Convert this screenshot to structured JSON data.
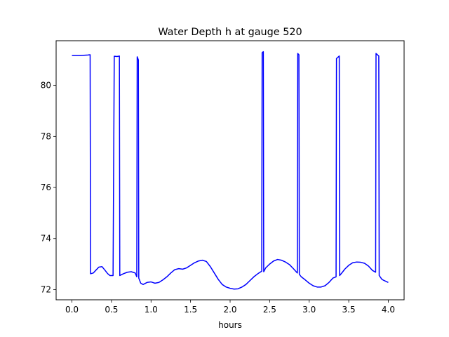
{
  "chart_data": {
    "type": "line",
    "title": "Water Depth h at gauge 520",
    "xlabel": "hours",
    "ylabel": "",
    "xlim": [
      -0.2,
      4.2
    ],
    "ylim": [
      71.6,
      81.75
    ],
    "grid": false,
    "x_ticks": [
      0.0,
      0.5,
      1.0,
      1.5,
      2.0,
      2.5,
      3.0,
      3.5,
      4.0
    ],
    "x_tick_labels": [
      "0.0",
      "0.5",
      "1.0",
      "1.5",
      "2.0",
      "2.5",
      "3.0",
      "3.5",
      "4.0"
    ],
    "y_ticks": [
      72,
      74,
      76,
      78,
      80
    ],
    "y_tick_labels": [
      "72",
      "74",
      "76",
      "78",
      "80"
    ],
    "series": [
      {
        "color": "#0000ff",
        "x": [
          0.0,
          0.1,
          0.2,
          0.23,
          0.235,
          0.27,
          0.3,
          0.34,
          0.38,
          0.42,
          0.45,
          0.48,
          0.52,
          0.535,
          0.54,
          0.57,
          0.6,
          0.605,
          0.65,
          0.7,
          0.75,
          0.8,
          0.82,
          0.825,
          0.84,
          0.845,
          0.87,
          0.9,
          0.95,
          1.0,
          1.05,
          1.1,
          1.15,
          1.2,
          1.25,
          1.3,
          1.35,
          1.4,
          1.45,
          1.5,
          1.55,
          1.6,
          1.65,
          1.7,
          1.75,
          1.8,
          1.85,
          1.9,
          1.95,
          2.0,
          2.05,
          2.1,
          2.15,
          2.2,
          2.25,
          2.3,
          2.35,
          2.4,
          2.405,
          2.42,
          2.425,
          2.45,
          2.5,
          2.55,
          2.6,
          2.65,
          2.7,
          2.75,
          2.8,
          2.85,
          2.855,
          2.87,
          2.875,
          2.9,
          2.95,
          3.0,
          3.05,
          3.1,
          3.15,
          3.2,
          3.25,
          3.3,
          3.34,
          3.345,
          3.38,
          3.385,
          3.42,
          3.45,
          3.5,
          3.55,
          3.6,
          3.65,
          3.7,
          3.75,
          3.8,
          3.84,
          3.845,
          3.88,
          3.885,
          3.92,
          3.95,
          4.0
        ],
        "y": [
          81.17,
          81.17,
          81.19,
          81.2,
          72.62,
          72.65,
          72.75,
          72.88,
          72.9,
          72.75,
          72.63,
          72.55,
          72.55,
          81.14,
          81.14,
          81.13,
          81.15,
          72.55,
          72.62,
          72.68,
          72.7,
          72.65,
          72.5,
          81.12,
          81.0,
          72.45,
          72.25,
          72.2,
          72.28,
          72.3,
          72.25,
          72.28,
          72.38,
          72.5,
          72.65,
          72.78,
          72.82,
          72.8,
          72.85,
          72.95,
          73.05,
          73.12,
          73.15,
          73.1,
          72.9,
          72.65,
          72.4,
          72.2,
          72.1,
          72.05,
          72.02,
          72.03,
          72.1,
          72.2,
          72.35,
          72.5,
          72.62,
          72.72,
          81.28,
          81.32,
          72.7,
          72.85,
          73.0,
          73.12,
          73.18,
          73.15,
          73.08,
          72.98,
          72.82,
          72.65,
          81.25,
          81.2,
          72.6,
          72.5,
          72.38,
          72.25,
          72.15,
          72.1,
          72.1,
          72.15,
          72.28,
          72.45,
          72.5,
          81.05,
          81.15,
          72.55,
          72.68,
          72.8,
          72.95,
          73.05,
          73.08,
          73.07,
          73.03,
          72.92,
          72.75,
          72.68,
          81.25,
          81.15,
          72.55,
          72.4,
          72.35,
          72.28
        ]
      }
    ]
  }
}
